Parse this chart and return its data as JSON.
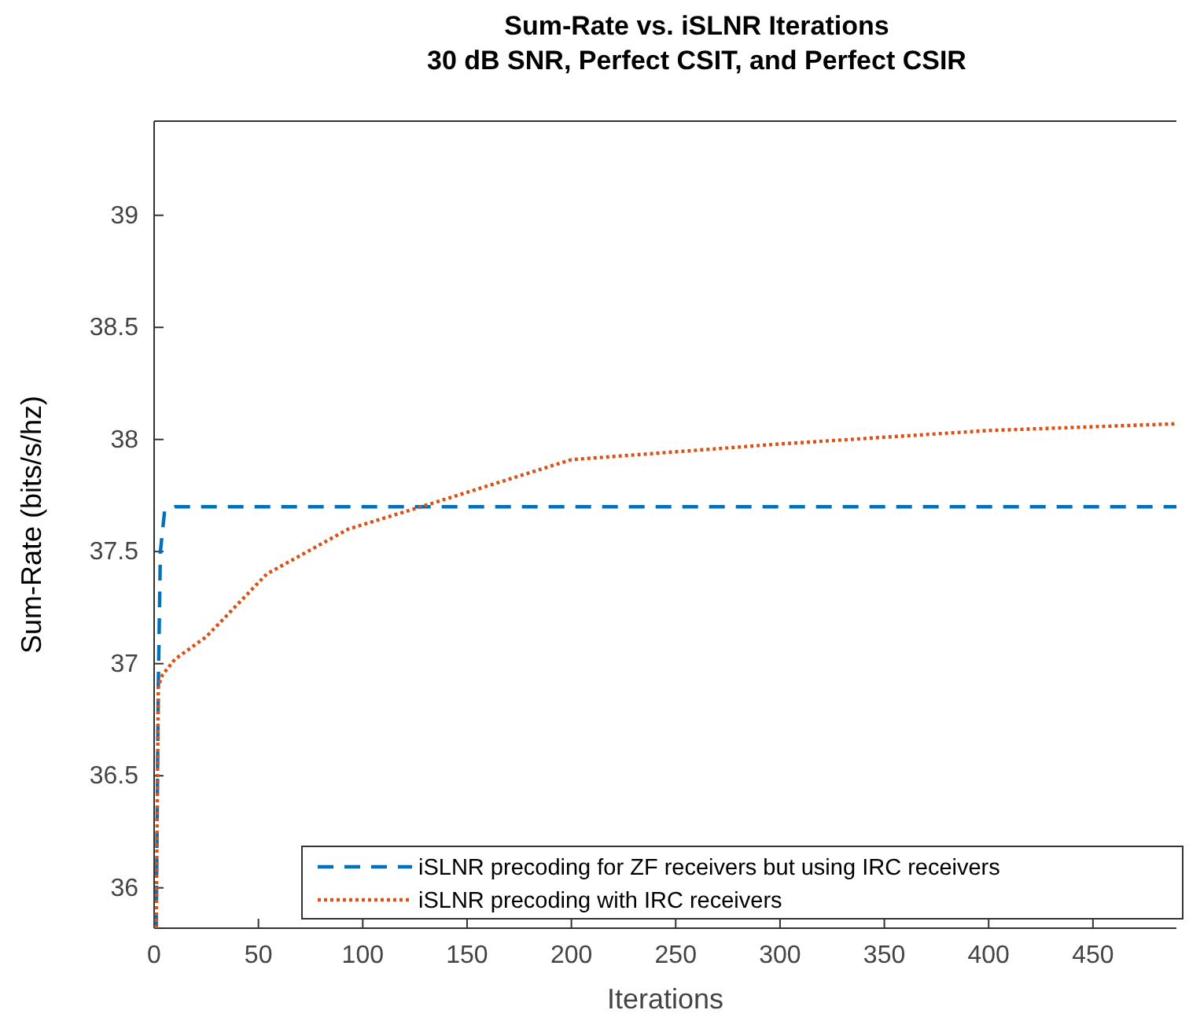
{
  "chart_data": {
    "type": "line",
    "title": "Sum-Rate vs. iSLNR Iterations\n30 dB SNR, Perfect CSIT, and Perfect CSIR",
    "xlabel": "Iterations",
    "ylabel": "Sum-Rate (bits/s/hz)",
    "xlim": [
      0,
      490
    ],
    "ylim": [
      35.82,
      39.42
    ],
    "xticks": [
      0,
      50,
      100,
      150,
      200,
      250,
      300,
      350,
      400,
      450
    ],
    "yticks": [
      {
        "value": 36,
        "label": "36"
      },
      {
        "value": 36.5,
        "label": "36.5"
      },
      {
        "value": 37,
        "label": "37"
      },
      {
        "value": 37.5,
        "label": "37.5"
      },
      {
        "value": 38,
        "label": "38"
      },
      {
        "value": 38.5,
        "label": "38.5"
      },
      {
        "value": 39,
        "label": "39"
      }
    ],
    "grid": false,
    "legend": "bottom right",
    "marker": "none",
    "series": [
      {
        "name": "iSLNR precoding for ZF receivers but using IRC receivers",
        "color": "#0072bd",
        "line_style": "dashed",
        "x": [
          1,
          2,
          3,
          5,
          10,
          490
        ],
        "values": [
          35.82,
          36.9,
          37.5,
          37.68,
          37.7,
          37.7
        ]
      },
      {
        "name": "iSLNR precoding with IRC receivers",
        "color": "#d95319",
        "line_style": "dotted",
        "x": [
          1,
          2,
          4,
          10,
          25,
          54,
          93,
          128,
          200,
          300,
          400,
          490
        ],
        "values": [
          35.82,
          36.9,
          36.95,
          37.02,
          37.12,
          37.4,
          37.6,
          37.7,
          37.91,
          37.98,
          38.04,
          38.07
        ]
      }
    ]
  }
}
